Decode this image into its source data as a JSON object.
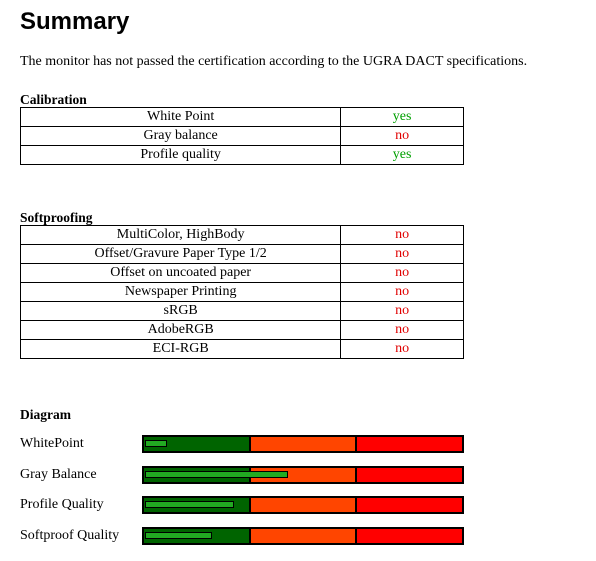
{
  "title": "Summary",
  "intro": "The monitor has not passed the certification according to the UGRA DACT specifications.",
  "calibration": {
    "heading": "Calibration",
    "rows": [
      {
        "label": "White Point",
        "value": "yes"
      },
      {
        "label": "Gray balance",
        "value": "no"
      },
      {
        "label": "Profile quality",
        "value": "yes"
      }
    ]
  },
  "softproofing": {
    "heading": "Softproofing",
    "rows": [
      {
        "label": "MultiColor, HighBody",
        "value": "no"
      },
      {
        "label": "Offset/Gravure Paper Type 1/2",
        "value": "no"
      },
      {
        "label": "Offset on uncoated paper",
        "value": "no"
      },
      {
        "label": "Newspaper Printing",
        "value": "no"
      },
      {
        "label": "sRGB",
        "value": "no"
      },
      {
        "label": "AdobeRGB",
        "value": "no"
      },
      {
        "label": "ECI-RGB",
        "value": "no"
      }
    ]
  },
  "diagram": {
    "heading": "Diagram",
    "zone_colors": {
      "good": "#006400",
      "warning": "#ff4500",
      "fail": "#ff0000"
    },
    "bar_color": "#22aa22",
    "rows": [
      {
        "label": "WhitePoint",
        "level": 0.07
      },
      {
        "label": "Gray Balance",
        "level": 0.45
      },
      {
        "label": "Profile Quality",
        "level": 0.28
      },
      {
        "label": "Softproof Quality",
        "level": 0.21
      }
    ]
  },
  "status_colors": {
    "yes": "#00a000",
    "no": "#e00000"
  }
}
